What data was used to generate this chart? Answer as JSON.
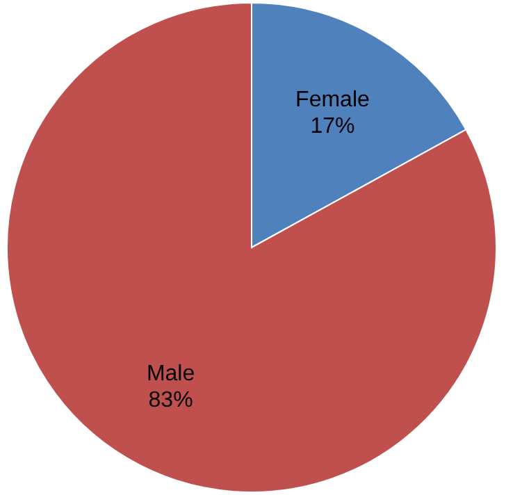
{
  "chart_data": {
    "type": "pie",
    "categories": [
      "Female",
      "Male"
    ],
    "values": [
      17,
      83
    ],
    "colors": [
      "#4f81bd",
      "#c0504d"
    ],
    "value_labels": [
      "17%",
      "83%"
    ]
  }
}
